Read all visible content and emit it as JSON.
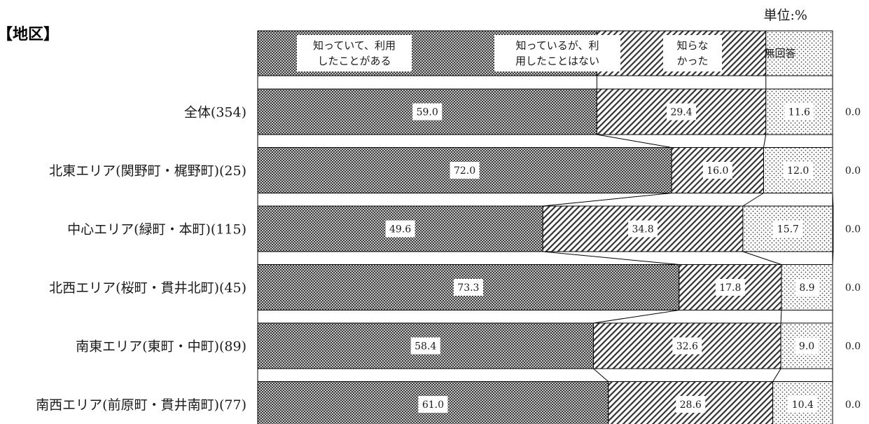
{
  "section_label": "【地区】",
  "unit_label": "単位:%",
  "chart_data": {
    "type": "bar",
    "stacked": true,
    "orientation": "horizontal",
    "xlim": [
      0,
      100
    ],
    "categories": [
      "全体(354)",
      "北東エリア(関野町・梶野町)(25)",
      "中心エリア(緑町・本町)(115)",
      "北西エリア(桜町・貫井北町)(45)",
      "南東エリア(東町・中町)(89)",
      "南西エリア(前原町・貫井南町)(77)"
    ],
    "series": [
      {
        "name_lines": [
          "知っていて、利用",
          "したことがある"
        ],
        "pattern": "checker",
        "values": [
          59.0,
          72.0,
          49.6,
          73.3,
          58.4,
          61.0
        ],
        "labels": [
          "59.0",
          "72.0",
          "49.6",
          "73.3",
          "58.4",
          "61.0"
        ]
      },
      {
        "name_lines": [
          "知っているが、利",
          "用したことはない"
        ],
        "pattern": "diagonal",
        "values": [
          29.4,
          16.0,
          34.8,
          17.8,
          32.6,
          28.6
        ],
        "labels": [
          "29.4",
          "16.0",
          "34.8",
          "17.8",
          "32.6",
          "28.6"
        ]
      },
      {
        "name_lines": [
          "知らな",
          "かった"
        ],
        "pattern": "dots",
        "values": [
          11.6,
          12.0,
          15.7,
          8.9,
          9.0,
          10.4
        ],
        "labels": [
          "11.6",
          "12.0",
          "15.7",
          "8.9",
          "9.0",
          "10.4"
        ]
      },
      {
        "name_lines": [
          "無回答"
        ],
        "pattern": "none",
        "values": [
          0.0,
          0.0,
          0.0,
          0.0,
          0.0,
          0.0
        ],
        "labels": [
          "0.0",
          "0.0",
          "0.0",
          "0.0",
          "0.0",
          "0.0"
        ]
      }
    ],
    "legend_position": "top",
    "connector_lines": true
  }
}
